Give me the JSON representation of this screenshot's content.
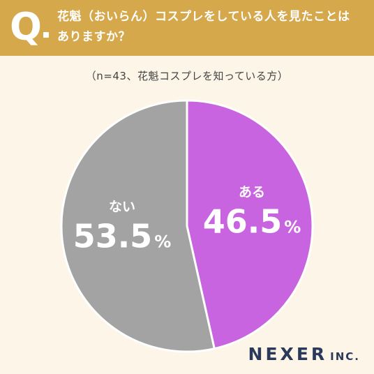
{
  "question": {
    "mark": "Q",
    "line1": "花魁（おいらん）コスプレをしている人を見たことは",
    "line2": "ありますか？"
  },
  "note": "（n=43、花魁コスプレを知っている方）",
  "chart_data": {
    "type": "pie",
    "slices": [
      {
        "label": "ある",
        "value": 46.5,
        "display": "46.5",
        "unit": "%",
        "color": "#c964e0"
      },
      {
        "label": "ない",
        "value": 53.5,
        "display": "53.5",
        "unit": "%",
        "color": "#a3a3a3"
      }
    ]
  },
  "logo": {
    "main": "NEXER",
    "suffix": "INC."
  }
}
